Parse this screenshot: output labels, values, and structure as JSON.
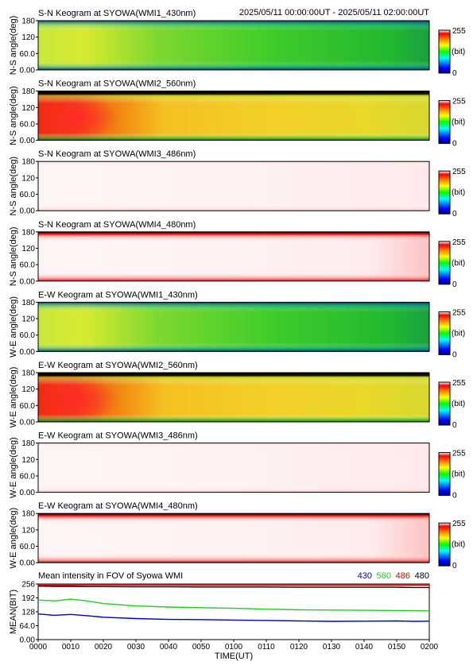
{
  "header": {
    "time_range": "2025/05/11 00:00:00UT - 2025/05/11 02:00:00UT"
  },
  "panels": [
    {
      "title": "S-N Keogram at SYOWA(WMI1_430nm)",
      "ylabel": "N-S angle(deg)",
      "scheme": "green"
    },
    {
      "title": "S-N Keogram at SYOWA(WMI2_560nm)",
      "ylabel": "N-S angle(deg)",
      "scheme": "orange"
    },
    {
      "title": "S-N Keogram at SYOWA(WMI3_486nm)",
      "ylabel": "N-S angle(deg)",
      "scheme": "pale"
    },
    {
      "title": "S-N Keogram at SYOWA(WMI4_480nm)",
      "ylabel": "N-S angle(deg)",
      "scheme": "pale-edge"
    },
    {
      "title": "E-W Keogram at SYOWA(WMI1_430nm)",
      "ylabel": "W-E angle(deg)",
      "scheme": "green"
    },
    {
      "title": "E-W Keogram at SYOWA(WMI2_560nm)",
      "ylabel": "W-E angle(deg)",
      "scheme": "orange"
    },
    {
      "title": "E-W Keogram at SYOWA(WMI3_486nm)",
      "ylabel": "W-E angle(deg)",
      "scheme": "pale"
    },
    {
      "title": "E-W Keogram at SYOWA(WMI4_480nm)",
      "ylabel": "W-E angle(deg)",
      "scheme": "pale-edge"
    }
  ],
  "keogram_axis": {
    "yticks": [
      "0.00",
      "60.0",
      "120",
      "180"
    ],
    "yrange": [
      0,
      180
    ]
  },
  "colorbar": {
    "max_label": "255",
    "unit_label": "(bit)",
    "min_label": "0"
  },
  "chart_data": {
    "type": "line",
    "title": "Mean intensity in FOV of Syowa WMI",
    "xlabel": "TIME(UT)",
    "ylabel": "MEAN(BIT)",
    "ylim": [
      0,
      256
    ],
    "yticks": [
      "0.00",
      "64.0",
      "128",
      "192",
      "256"
    ],
    "xticks": [
      "0000",
      "0010",
      "0020",
      "0030",
      "0040",
      "0050",
      "0100",
      "0110",
      "0120",
      "0130",
      "0140",
      "0150",
      "0200"
    ],
    "x_minutes": [
      0,
      5,
      10,
      15,
      20,
      30,
      40,
      50,
      60,
      70,
      80,
      90,
      100,
      110,
      115,
      120
    ],
    "series": [
      {
        "name": "430",
        "color": "#0000cc",
        "values": [
          118,
          112,
          116,
          110,
          103,
          97,
          93,
          92,
          90,
          88,
          86,
          84,
          85,
          86,
          84,
          85
        ]
      },
      {
        "name": "560",
        "color": "#22cc22",
        "values": [
          182,
          178,
          186,
          178,
          166,
          155,
          150,
          147,
          144,
          140,
          137,
          136,
          135,
          134,
          133,
          132
        ]
      },
      {
        "name": "486",
        "color": "#dd0000",
        "values": [
          251,
          251,
          251,
          251,
          251,
          251,
          251,
          251,
          251,
          251,
          251,
          251,
          251,
          251,
          251,
          251
        ]
      },
      {
        "name": "480",
        "color": "#000000",
        "values": [
          246,
          245,
          245,
          244,
          244,
          243,
          243,
          242,
          242,
          242,
          241,
          241,
          241,
          241,
          240,
          240
        ]
      }
    ]
  }
}
